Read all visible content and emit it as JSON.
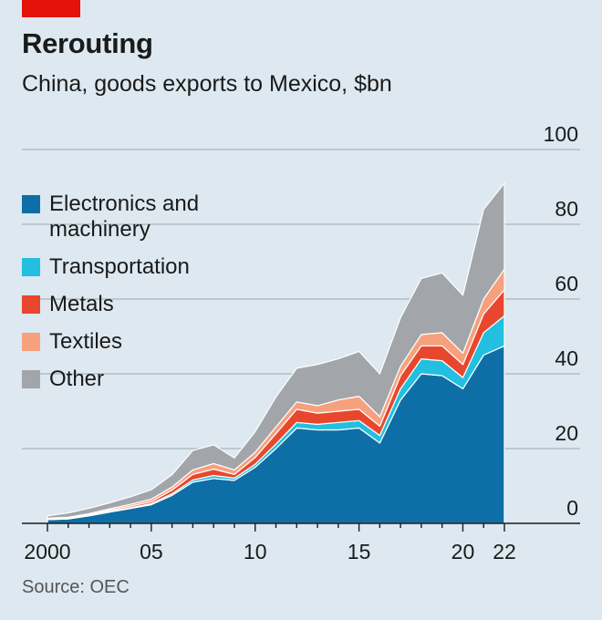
{
  "header": {
    "title": "Rerouting",
    "subtitle": "China, goods exports to Mexico, $bn",
    "source": "Source: OEC"
  },
  "colors": {
    "brand_red": "#e3120b",
    "background": "#dde8f0",
    "gridline": "#a9b5bd"
  },
  "chart_data": {
    "type": "area",
    "stacked": true,
    "title": "China, goods exports to Mexico, $bn",
    "xlabel": "",
    "ylabel": "$bn",
    "x": [
      2000,
      2001,
      2002,
      2003,
      2004,
      2005,
      2006,
      2007,
      2008,
      2009,
      2010,
      2011,
      2012,
      2013,
      2014,
      2015,
      2016,
      2017,
      2018,
      2019,
      2020,
      2021,
      2022
    ],
    "x_tick_values": [
      2000,
      2005,
      2010,
      2015,
      2020,
      2022
    ],
    "x_tick_labels": [
      "2000",
      "05",
      "10",
      "15",
      "20",
      "22"
    ],
    "ylim": [
      0,
      100
    ],
    "y_ticks": [
      0,
      20,
      40,
      60,
      80,
      100
    ],
    "y_tick_labels": [
      "0",
      "20",
      "40",
      "60",
      "80",
      "100"
    ],
    "legend_position": "left",
    "series": [
      {
        "name": "Electronics and machinery",
        "color": "#0e6fa6",
        "values": [
          1.0,
          1.2,
          2.0,
          3.0,
          4.0,
          5.0,
          7.5,
          11.0,
          12.0,
          11.5,
          15.0,
          20.0,
          25.5,
          25.0,
          25.0,
          25.5,
          21.5,
          33.0,
          40.0,
          39.5,
          36.0,
          45.0,
          47.5
        ]
      },
      {
        "name": "Transportation",
        "color": "#22bfe0",
        "values": [
          0.1,
          0.1,
          0.1,
          0.2,
          0.2,
          0.3,
          0.4,
          0.6,
          0.8,
          0.6,
          0.8,
          1.2,
          1.5,
          1.5,
          2.0,
          2.0,
          2.0,
          3.0,
          4.0,
          4.0,
          3.0,
          6.0,
          8.0
        ]
      },
      {
        "name": "Metals",
        "color": "#e8472e",
        "values": [
          0.1,
          0.1,
          0.2,
          0.3,
          0.4,
          0.5,
          1.0,
          1.5,
          1.7,
          1.0,
          1.8,
          2.8,
          3.5,
          3.0,
          3.0,
          3.0,
          2.5,
          3.5,
          3.5,
          4.0,
          3.5,
          5.0,
          7.0
        ]
      },
      {
        "name": "Textiles",
        "color": "#f7a07e",
        "values": [
          0.2,
          0.2,
          0.3,
          0.4,
          0.5,
          0.7,
          0.8,
          1.2,
          1.5,
          1.2,
          1.4,
          1.8,
          2.0,
          2.0,
          3.0,
          3.5,
          2.5,
          2.5,
          3.0,
          3.5,
          3.0,
          4.0,
          5.5
        ]
      },
      {
        "name": "Other",
        "color": "#a2a6aa",
        "values": [
          0.6,
          1.2,
          1.4,
          1.6,
          2.0,
          2.5,
          3.3,
          5.2,
          5.0,
          3.2,
          5.5,
          8.0,
          9.0,
          11.0,
          11.0,
          12.0,
          11.5,
          13.0,
          15.0,
          16.0,
          15.5,
          24.0,
          23.0
        ]
      }
    ]
  }
}
